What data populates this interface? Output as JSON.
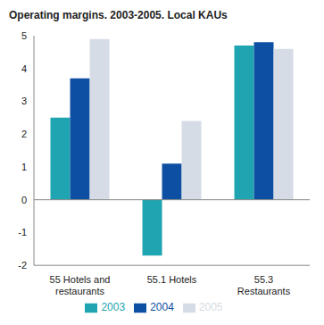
{
  "chart_data": {
    "type": "bar",
    "title": "Operating margins. 2003-2005. Local KAUs",
    "categories": [
      "55 Hotels and restaurants",
      "55.1 Hotels",
      "55.3 Restaurants"
    ],
    "series": [
      {
        "name": "2003",
        "color": "#1ea5b1",
        "values": [
          2.5,
          -1.7,
          4.7
        ]
      },
      {
        "name": "2004",
        "color": "#0d4fa2",
        "values": [
          3.7,
          1.1,
          4.8
        ]
      },
      {
        "name": "2005",
        "color": "#d5dce5",
        "values": [
          4.9,
          2.4,
          4.6
        ]
      }
    ],
    "ylim": [
      -2,
      5
    ],
    "yticks": [
      -2,
      -1,
      0,
      1,
      2,
      3,
      4,
      5
    ],
    "grid": false,
    "legend": "bottom"
  }
}
